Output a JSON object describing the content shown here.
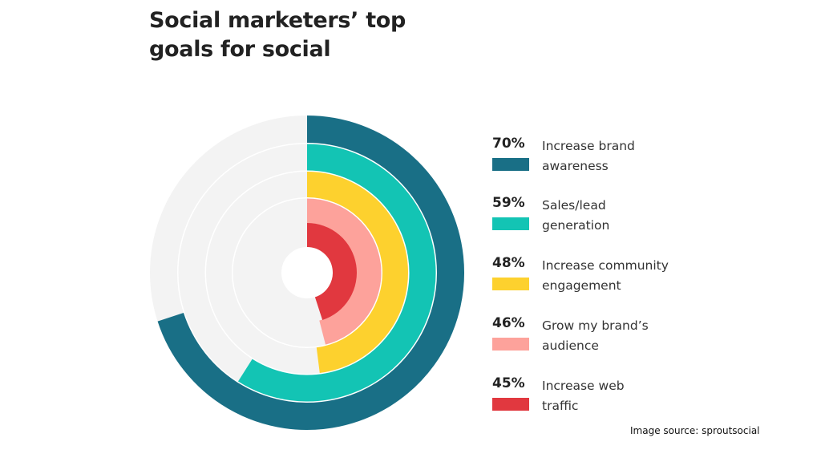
{
  "title": {
    "line1": "Social marketers’ top",
    "line2": "goals for social"
  },
  "source": "Image source: sproutsocial",
  "chart_data": {
    "type": "radial-bar",
    "title": "Social marketers’ top goals for social",
    "max": 100,
    "series": [
      {
        "name": "Increase brand awareness",
        "value": 70,
        "label": "70%",
        "label_lines": [
          "Increase brand",
          "awareness"
        ],
        "color": "#196f86"
      },
      {
        "name": "Sales/lead generation",
        "value": 59,
        "label": "59%",
        "label_lines": [
          "Sales/lead",
          "generation"
        ],
        "color": "#13c4b4"
      },
      {
        "name": "Increase community engagement",
        "value": 48,
        "label": "48%",
        "label_lines": [
          "Increase community",
          "engagement"
        ],
        "color": "#fdd12e"
      },
      {
        "name": "Grow my brand’s audience",
        "value": 46,
        "label": "46%",
        "label_lines": [
          "Grow my brand’s",
          "audience"
        ],
        "color": "#fda29b"
      },
      {
        "name": "Increase web traffic",
        "value": 45,
        "label": "45%",
        "label_lines": [
          "Increase web",
          "traffic"
        ],
        "color": "#e1383f"
      }
    ],
    "track_color": "#f3f3f3",
    "legend_position": "right"
  }
}
